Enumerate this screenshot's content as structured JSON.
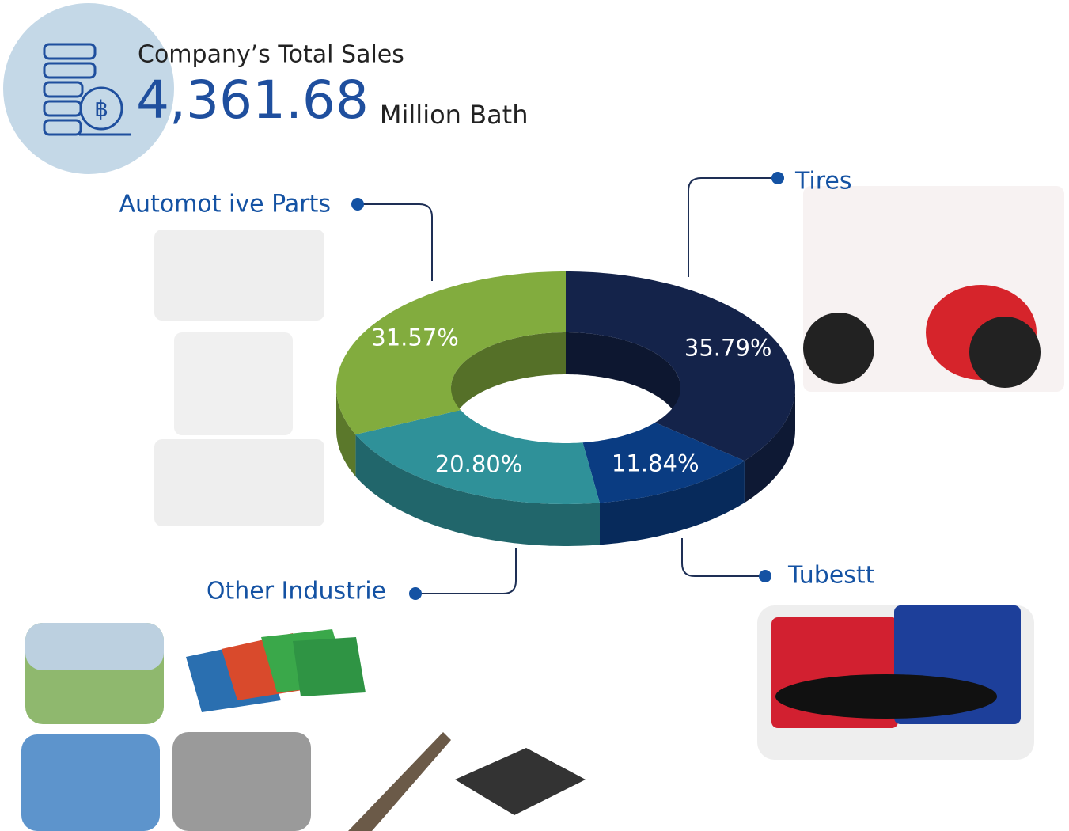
{
  "header": {
    "title": "Company’s Total Sales",
    "total": "4,361.68",
    "unit": "Million Bath"
  },
  "chart_data": {
    "type": "donut",
    "categories": [
      "Tires",
      "Tubestt",
      "Other Industrie",
      "Automot ive Parts"
    ],
    "values": [
      35.79,
      11.84,
      20.8,
      31.57
    ],
    "value_labels": [
      "35.79%",
      "11.84%",
      "20.80%",
      "31.57%"
    ],
    "colors": [
      "#14234a",
      "#0a3c82",
      "#2f9199",
      "#82ac3e"
    ]
  }
}
